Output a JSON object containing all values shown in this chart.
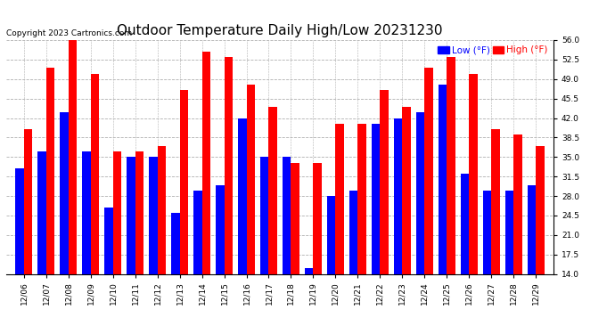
{
  "title": "Outdoor Temperature Daily High/Low 20231230",
  "copyright": "Copyright 2023 Cartronics.com",
  "legend_low": "Low",
  "legend_high": "High",
  "legend_unit": "(°F)",
  "dates": [
    "12/06",
    "12/07",
    "12/08",
    "12/09",
    "12/10",
    "12/11",
    "12/12",
    "12/13",
    "12/14",
    "12/15",
    "12/16",
    "12/17",
    "12/18",
    "12/19",
    "12/20",
    "12/21",
    "12/22",
    "12/23",
    "12/24",
    "12/25",
    "12/26",
    "12/27",
    "12/28",
    "12/29"
  ],
  "highs": [
    40,
    51,
    57,
    50,
    36,
    36,
    37,
    47,
    54,
    53,
    48,
    44,
    34,
    34,
    41,
    41,
    47,
    44,
    51,
    53,
    50,
    40,
    39,
    37
  ],
  "lows": [
    33,
    36,
    43,
    36,
    26,
    35,
    35,
    25,
    29,
    30,
    42,
    35,
    35,
    15,
    28,
    29,
    41,
    42,
    43,
    48,
    32,
    29,
    29,
    30
  ],
  "high_color": "#ff0000",
  "low_color": "#0000ff",
  "bg_color": "#ffffff",
  "grid_color": "#b0b0b0",
  "ylim_min": 14.0,
  "ylim_max": 56.0,
  "yticks": [
    14.0,
    17.5,
    21.0,
    24.5,
    28.0,
    31.5,
    35.0,
    38.5,
    42.0,
    45.5,
    49.0,
    52.5,
    56.0
  ],
  "title_fontsize": 11,
  "tick_fontsize": 6.5,
  "legend_fontsize": 7.5,
  "copyright_fontsize": 6.5,
  "bar_width": 0.38
}
